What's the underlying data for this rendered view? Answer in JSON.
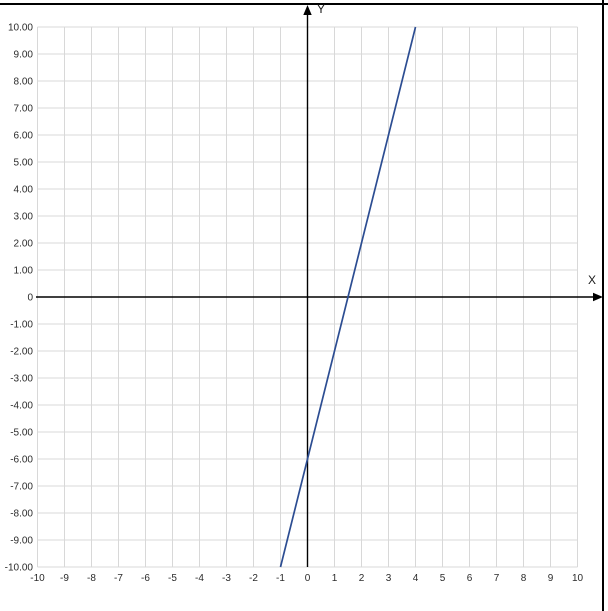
{
  "window": {
    "background": "#ffffff",
    "top_border_color": "#000000",
    "right_border_color": "#000000"
  },
  "chart_data": {
    "type": "line",
    "title": "",
    "x_axis_label": "X",
    "y_axis_label": "Y",
    "x_range": [
      -10,
      10
    ],
    "y_range": [
      -10,
      10
    ],
    "grid_step": 1,
    "grid": true,
    "legend": false,
    "x_tick_labels": [
      "-10",
      "-9",
      "-8",
      "-7",
      "-6",
      "-5",
      "-4",
      "-3",
      "-2",
      "-1",
      "0",
      "1",
      "2",
      "3",
      "4",
      "5",
      "6",
      "7",
      "8",
      "9",
      "10"
    ],
    "y_tick_labels": [
      "10.00",
      "9.00",
      "8.00",
      "7.00",
      "6.00",
      "5.00",
      "4.00",
      "3.00",
      "2.00",
      "1.00",
      "0",
      "-1.00",
      "-2.00",
      "-3.00",
      "-4.00",
      "-5.00",
      "-6.00",
      "-7.00",
      "-8.00",
      "-9.00",
      "-10.00"
    ],
    "series": [
      {
        "name": "line-segment",
        "color": "#2c4d92",
        "points": [
          [
            -1,
            -10
          ],
          [
            4,
            10
          ]
        ]
      }
    ],
    "grid_color": "#d8d8d8",
    "axis_color": "#000000",
    "tick_label_color": "#2b2b2b"
  }
}
